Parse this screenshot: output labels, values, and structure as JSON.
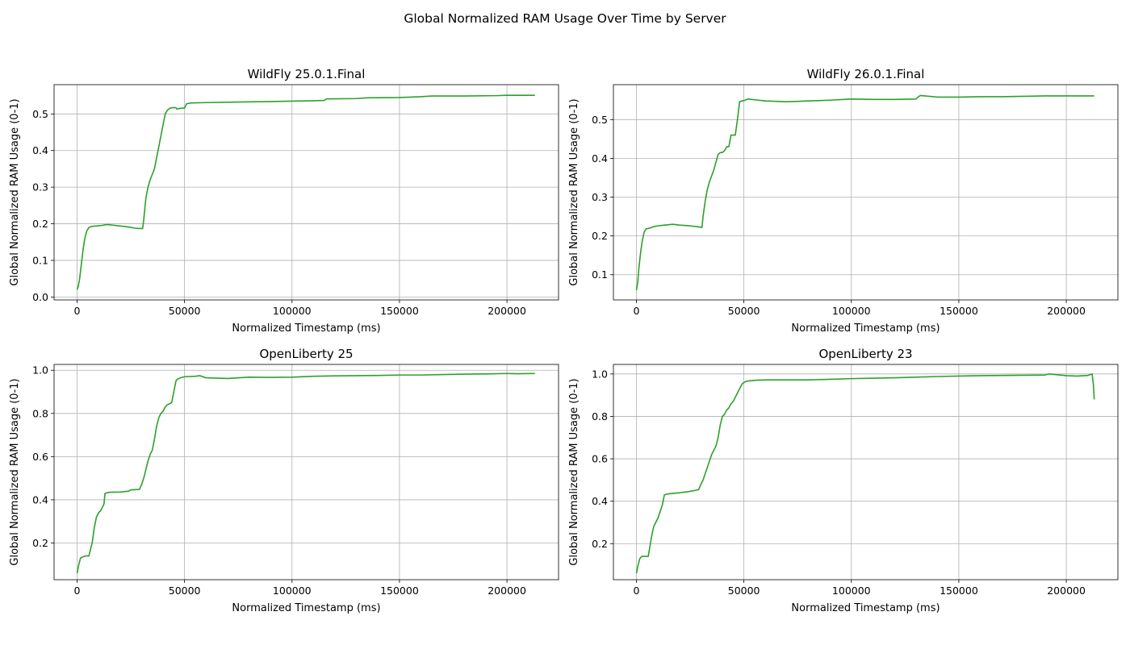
{
  "figure": {
    "title": "Global Normalized RAM Usage Over Time by Server"
  },
  "chart_data": [
    {
      "type": "line",
      "title": "WildFly 25.0.1.Final",
      "xlabel": "Normalized Timestamp (ms)",
      "ylabel": "Global Normalized RAM Usage (0-1)",
      "xlim": [
        -10700,
        224000
      ],
      "ylim": [
        -0.008,
        0.58
      ],
      "xticks": [
        0,
        50000,
        100000,
        150000,
        200000
      ],
      "yticks": [
        0.0,
        0.1,
        0.2,
        0.3,
        0.4,
        0.5
      ],
      "ytick_labels": [
        "0.0",
        "0.1",
        "0.2",
        "0.3",
        "0.4",
        "0.5"
      ],
      "grid": true,
      "color": "#2ca02c",
      "series": [
        {
          "x": [
            0,
            600,
            1200,
            2000,
            2800,
            3600,
            4500,
            5500,
            7000,
            9000,
            12000,
            14000,
            17000,
            20000,
            23000,
            25000,
            27000,
            29000,
            30500,
            31000,
            31500,
            32000,
            33000,
            34000,
            35000,
            36000,
            37000,
            38000,
            39000,
            40000,
            41000,
            42000,
            43000,
            44000,
            45000,
            46000,
            46500,
            47500,
            49000,
            50000,
            51000,
            53000,
            60000,
            70000,
            80000,
            90000,
            100000,
            110000,
            115000,
            116000,
            130000,
            135000,
            150000,
            160000,
            165000,
            180000,
            195000,
            200000,
            213000
          ],
          "y": [
            0.02,
            0.03,
            0.05,
            0.09,
            0.13,
            0.16,
            0.18,
            0.19,
            0.193,
            0.194,
            0.196,
            0.198,
            0.196,
            0.194,
            0.192,
            0.19,
            0.188,
            0.187,
            0.187,
            0.21,
            0.24,
            0.27,
            0.3,
            0.32,
            0.335,
            0.35,
            0.38,
            0.41,
            0.44,
            0.47,
            0.5,
            0.51,
            0.515,
            0.517,
            0.517,
            0.517,
            0.513,
            0.515,
            0.516,
            0.516,
            0.528,
            0.53,
            0.531,
            0.532,
            0.533,
            0.534,
            0.535,
            0.536,
            0.537,
            0.541,
            0.542,
            0.544,
            0.545,
            0.547,
            0.549,
            0.549,
            0.55,
            0.551,
            0.551
          ]
        }
      ]
    },
    {
      "type": "line",
      "title": "WildFly 26.0.1.Final",
      "xlabel": "Normalized Timestamp (ms)",
      "ylabel": "Global Normalized RAM Usage (0-1)",
      "xlim": [
        -10700,
        224000
      ],
      "ylim": [
        0.035,
        0.59
      ],
      "xticks": [
        0,
        50000,
        100000,
        150000,
        200000
      ],
      "yticks": [
        0.1,
        0.2,
        0.3,
        0.4,
        0.5
      ],
      "ytick_labels": [
        "0.1",
        "0.2",
        "0.3",
        "0.4",
        "0.5"
      ],
      "grid": true,
      "color": "#2ca02c",
      "series": [
        {
          "x": [
            0,
            600,
            1200,
            2000,
            2800,
            3600,
            4500,
            6000,
            8000,
            10000,
            13000,
            17000,
            20000,
            25000,
            28000,
            30500,
            31000,
            32000,
            33000,
            34000,
            35000,
            36000,
            37000,
            38000,
            39000,
            40000,
            41000,
            42000,
            43000,
            44000,
            45000,
            46000,
            47000,
            48000,
            49000,
            50000,
            52000,
            55000,
            60000,
            70000,
            80000,
            90000,
            100000,
            110000,
            120000,
            130000,
            132000,
            140000,
            150000,
            160000,
            170000,
            180000,
            190000,
            200000,
            213000
          ],
          "y": [
            0.06,
            0.08,
            0.12,
            0.16,
            0.19,
            0.21,
            0.218,
            0.22,
            0.224,
            0.226,
            0.228,
            0.23,
            0.228,
            0.226,
            0.224,
            0.222,
            0.25,
            0.29,
            0.32,
            0.34,
            0.355,
            0.37,
            0.39,
            0.41,
            0.415,
            0.415,
            0.42,
            0.43,
            0.43,
            0.46,
            0.46,
            0.46,
            0.5,
            0.546,
            0.548,
            0.549,
            0.553,
            0.551,
            0.548,
            0.546,
            0.548,
            0.55,
            0.553,
            0.552,
            0.552,
            0.553,
            0.562,
            0.558,
            0.558,
            0.559,
            0.559,
            0.56,
            0.561,
            0.561,
            0.561
          ]
        }
      ]
    },
    {
      "type": "line",
      "title": "OpenLiberty 25",
      "xlabel": "Normalized Timestamp (ms)",
      "ylabel": "Global Normalized RAM Usage (0-1)",
      "xlim": [
        -10700,
        224000
      ],
      "ylim": [
        0.03,
        1.027
      ],
      "xticks": [
        0,
        50000,
        100000,
        150000,
        200000
      ],
      "yticks": [
        0.2,
        0.4,
        0.6,
        0.8,
        1.0
      ],
      "ytick_labels": [
        "0.2",
        "0.4",
        "0.6",
        "0.8",
        "1.0"
      ],
      "grid": true,
      "color": "#2ca02c",
      "series": [
        {
          "x": [
            0,
            800,
            1600,
            2500,
            4000,
            5500,
            6000,
            7000,
            8000,
            9000,
            10000,
            11000,
            12000,
            12500,
            13000,
            15000,
            20000,
            24000,
            25000,
            29000,
            30000,
            31000,
            32000,
            33000,
            34000,
            35000,
            36000,
            37000,
            38000,
            39000,
            40000,
            41000,
            42000,
            43000,
            44000,
            45000,
            46000,
            46500,
            48000,
            50000,
            55000,
            57000,
            60000,
            70000,
            80000,
            90000,
            100000,
            110000,
            120000,
            130000,
            140000,
            150000,
            160000,
            170000,
            180000,
            190000,
            200000,
            205000,
            213000
          ],
          "y": [
            0.06,
            0.1,
            0.13,
            0.135,
            0.14,
            0.14,
            0.16,
            0.2,
            0.27,
            0.32,
            0.34,
            0.35,
            0.37,
            0.38,
            0.43,
            0.435,
            0.436,
            0.44,
            0.446,
            0.448,
            0.47,
            0.5,
            0.54,
            0.58,
            0.61,
            0.63,
            0.68,
            0.74,
            0.78,
            0.8,
            0.81,
            0.83,
            0.84,
            0.845,
            0.85,
            0.9,
            0.95,
            0.957,
            0.965,
            0.97,
            0.972,
            0.975,
            0.965,
            0.962,
            0.968,
            0.967,
            0.968,
            0.972,
            0.974,
            0.975,
            0.976,
            0.978,
            0.978,
            0.98,
            0.982,
            0.983,
            0.985,
            0.984,
            0.985
          ]
        }
      ]
    },
    {
      "type": "line",
      "title": "OpenLiberty 23",
      "xlabel": "Normalized Timestamp (ms)",
      "ylabel": "Global Normalized RAM Usage (0-1)",
      "xlim": [
        -10700,
        224000
      ],
      "ylim": [
        0.03,
        1.045
      ],
      "xticks": [
        0,
        50000,
        100000,
        150000,
        200000
      ],
      "yticks": [
        0.2,
        0.4,
        0.6,
        0.8,
        1.0
      ],
      "ytick_labels": [
        "0.2",
        "0.4",
        "0.6",
        "0.8",
        "1.0"
      ],
      "grid": true,
      "color": "#2ca02c",
      "series": [
        {
          "x": [
            0,
            800,
            1600,
            2500,
            4000,
            5500,
            6000,
            7000,
            8000,
            9000,
            10000,
            11000,
            12000,
            13000,
            15000,
            20000,
            24000,
            27000,
            29000,
            30000,
            31000,
            32000,
            33000,
            34000,
            35000,
            36000,
            37000,
            38000,
            39000,
            40000,
            41000,
            42000,
            43000,
            44000,
            45000,
            46000,
            47000,
            48000,
            49000,
            50000,
            51000,
            52000,
            55000,
            60000,
            70000,
            80000,
            90000,
            100000,
            110000,
            120000,
            130000,
            140000,
            150000,
            160000,
            170000,
            180000,
            190000,
            192000,
            200000,
            205000,
            210000,
            212000,
            212600,
            213000
          ],
          "y": [
            0.06,
            0.1,
            0.13,
            0.14,
            0.14,
            0.14,
            0.17,
            0.23,
            0.28,
            0.3,
            0.32,
            0.35,
            0.38,
            0.43,
            0.435,
            0.44,
            0.445,
            0.45,
            0.455,
            0.48,
            0.5,
            0.53,
            0.56,
            0.59,
            0.62,
            0.64,
            0.66,
            0.7,
            0.76,
            0.8,
            0.81,
            0.83,
            0.84,
            0.86,
            0.87,
            0.89,
            0.91,
            0.93,
            0.95,
            0.96,
            0.965,
            0.967,
            0.97,
            0.972,
            0.972,
            0.972,
            0.975,
            0.978,
            0.98,
            0.982,
            0.985,
            0.988,
            0.99,
            0.992,
            0.993,
            0.994,
            0.995,
            1.0,
            0.992,
            0.99,
            0.993,
            1.0,
            0.95,
            0.88
          ]
        }
      ]
    }
  ]
}
